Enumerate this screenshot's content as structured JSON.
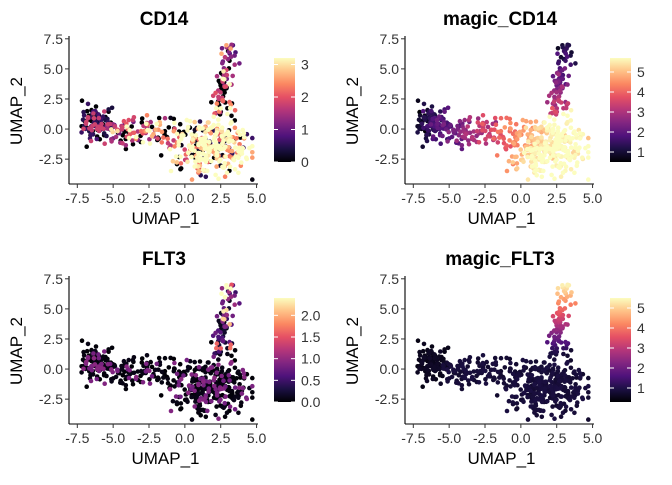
{
  "colors": {
    "magma": [
      "#000004",
      "#1c1044",
      "#4f127b",
      "#812581",
      "#b5367a",
      "#e55064",
      "#fb8761",
      "#fec287",
      "#fcfdbf"
    ]
  },
  "chart_data": [
    {
      "type": "scatter",
      "title": "CD14",
      "xlabel": "UMAP_1",
      "ylabel": "UMAP_2",
      "xlim": [
        -7.8,
        5.1
      ],
      "ylim": [
        -4.4,
        7.4
      ],
      "xticks": [
        -7.5,
        -5.0,
        -2.5,
        0.0,
        2.5,
        5.0
      ],
      "xtick_labels": [
        "-7.5",
        "-5.0",
        "-2.5",
        "0.0",
        "2.5",
        "5.0"
      ],
      "yticks": [
        -2.5,
        0.0,
        2.5,
        5.0,
        7.5
      ],
      "ytick_labels": [
        "-2.5",
        "0.0",
        "2.5",
        "5.0",
        "7.5"
      ],
      "color_scale": {
        "min": 0,
        "max": 3.2,
        "ticks": [
          0,
          1,
          2,
          3
        ],
        "tick_labels": [
          "0",
          "1",
          "2",
          "3"
        ]
      },
      "pattern": "cd14"
    },
    {
      "type": "scatter",
      "title": "magic_CD14",
      "xlabel": "UMAP_1",
      "ylabel": "UMAP_2",
      "xlim": [
        -7.8,
        5.1
      ],
      "ylim": [
        -4.4,
        7.4
      ],
      "xticks": [
        -7.5,
        -5.0,
        -2.5,
        0.0,
        2.5,
        5.0
      ],
      "xtick_labels": [
        "-7.5",
        "-5.0",
        "-2.5",
        "0.0",
        "2.5",
        "5.0"
      ],
      "yticks": [
        -2.5,
        0.0,
        2.5,
        5.0,
        7.5
      ],
      "ytick_labels": [
        "-2.5",
        "0.0",
        "2.5",
        "5.0",
        "7.5"
      ],
      "color_scale": {
        "min": 0.5,
        "max": 5.7,
        "ticks": [
          1,
          2,
          3,
          4,
          5
        ],
        "tick_labels": [
          "1",
          "2",
          "3",
          "4",
          "5"
        ]
      },
      "pattern": "magic_cd14"
    },
    {
      "type": "scatter",
      "title": "FLT3",
      "xlabel": "UMAP_1",
      "ylabel": "UMAP_2",
      "xlim": [
        -7.8,
        5.1
      ],
      "ylim": [
        -4.4,
        7.4
      ],
      "xticks": [
        -7.5,
        -5.0,
        -2.5,
        0.0,
        2.5,
        5.0
      ],
      "xtick_labels": [
        "-7.5",
        "-5.0",
        "-2.5",
        "0.0",
        "2.5",
        "5.0"
      ],
      "yticks": [
        -2.5,
        0.0,
        2.5,
        5.0,
        7.5
      ],
      "ytick_labels": [
        "-2.5",
        "0.0",
        "2.5",
        "5.0",
        "7.5"
      ],
      "color_scale": {
        "min": 0,
        "max": 2.4,
        "ticks": [
          0,
          0.5,
          1.0,
          1.5,
          2.0
        ],
        "tick_labels": [
          "0.0",
          "0.5",
          "1.0",
          "1.5",
          "2.0"
        ]
      },
      "pattern": "flt3"
    },
    {
      "type": "scatter",
      "title": "magic_FLT3",
      "xlabel": "UMAP_1",
      "ylabel": "UMAP_2",
      "xlim": [
        -7.8,
        5.1
      ],
      "ylim": [
        -4.4,
        7.4
      ],
      "xticks": [
        -7.5,
        -5.0,
        -2.5,
        0.0,
        2.5,
        5.0
      ],
      "xtick_labels": [
        "-7.5",
        "-5.0",
        "-2.5",
        "0.0",
        "2.5",
        "5.0"
      ],
      "yticks": [
        -2.5,
        0.0,
        2.5,
        5.0,
        7.5
      ],
      "ytick_labels": [
        "-2.5",
        "0.0",
        "2.5",
        "5.0",
        "7.5"
      ],
      "color_scale": {
        "min": 0.3,
        "max": 5.5,
        "ticks": [
          1,
          2,
          3,
          4,
          5
        ],
        "tick_labels": [
          "1",
          "2",
          "3",
          "4",
          "5"
        ]
      },
      "pattern": "magic_flt3"
    }
  ]
}
